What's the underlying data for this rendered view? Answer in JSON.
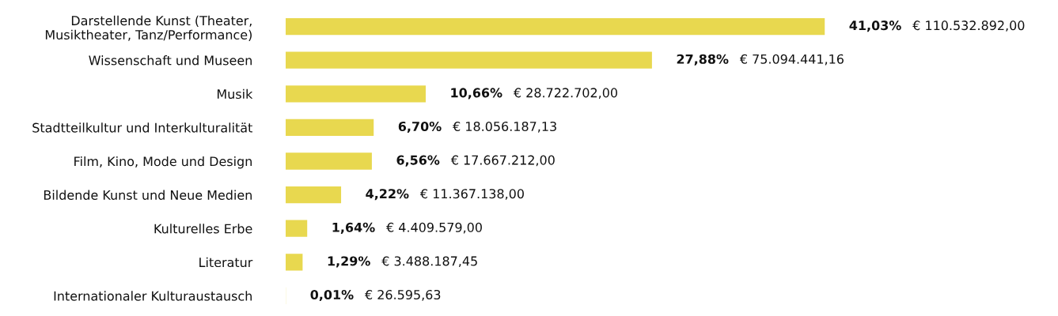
{
  "chart_data": {
    "type": "bar",
    "orientation": "horizontal",
    "categories": [
      "Darstellende Kunst (Theater,\nMusiktheater, Tanz/Performance)",
      "Wissenschaft und Museen",
      "Musik",
      "Stadtteilkultur und Interkulturalität",
      "Film, Kino, Mode und Design",
      "Bildende Kunst und Neue Medien",
      "Kulturelles Erbe",
      "Literatur",
      "Internationaler Kulturaustausch"
    ],
    "values": [
      41.03,
      27.88,
      10.66,
      6.7,
      6.56,
      4.22,
      1.64,
      1.29,
      0.01
    ],
    "value_labels": [
      "41,03%",
      "27,88%",
      "10,66%",
      "6,70%",
      "6,56%",
      "4,22%",
      "1,64%",
      "1,29%",
      "0,01%"
    ],
    "color": "#e8d84f",
    "annotations": [
      "€ 110.532.892,00",
      "€ 75.094.441,16",
      "€ 28.722.702,00",
      "€ 18.056.187,13",
      "€ 17.667.212,00",
      "€ 11.367.138,00",
      "€ 4.409.579,00",
      "€ 3.488.187,45",
      "€ 26.595,63"
    ],
    "grid": false,
    "legend": false
  }
}
